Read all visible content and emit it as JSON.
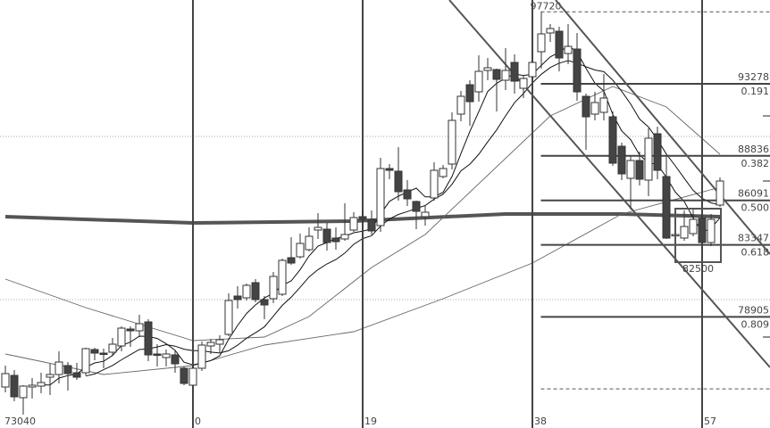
{
  "chart_data": {
    "type": "candlestick",
    "title": "",
    "xlabel": "",
    "ylabel": "",
    "first_bar_index": -21,
    "xlim": [
      -21.6,
      64.6
    ],
    "ylim": [
      72050,
      98450
    ],
    "grid": "dotted horizontal",
    "x_tick_labels": [
      {
        "bar": -21,
        "text": "73040"
      },
      {
        "bar": 0,
        "text": "0"
      },
      {
        "bar": 19,
        "text": "19"
      },
      {
        "bar": 38,
        "text": "38"
      },
      {
        "bar": 57,
        "text": "57"
      }
    ],
    "vertical_lines_at_bars": [
      0,
      19,
      38,
      57
    ],
    "horizontal_gridlines": [
      90035,
      79970
    ],
    "candles_ohlc": [
      [
        74580,
        75900,
        74250,
        75405
      ],
      [
        75295,
        75625,
        73700,
        73975
      ],
      [
        73920,
        74690,
        72875,
        74635
      ],
      [
        74580,
        75130,
        73865,
        74690
      ],
      [
        74635,
        75460,
        74195,
        74855
      ],
      [
        75185,
        76010,
        74085,
        75350
      ],
      [
        75350,
        76780,
        74800,
        76120
      ],
      [
        75900,
        76120,
        74360,
        75405
      ],
      [
        75460,
        76065,
        75020,
        75185
      ],
      [
        75460,
        77000,
        75295,
        76945
      ],
      [
        76890,
        77000,
        76230,
        76670
      ],
      [
        76670,
        76945,
        75735,
        76615
      ],
      [
        76725,
        77605,
        76560,
        77220
      ],
      [
        77110,
        78320,
        76780,
        78210
      ],
      [
        78155,
        78320,
        77055,
        78045
      ],
      [
        78045,
        79035,
        77660,
        78485
      ],
      [
        78595,
        78760,
        76175,
        76560
      ],
      [
        76615,
        77220,
        75845,
        76560
      ],
      [
        76395,
        76890,
        75845,
        76615
      ],
      [
        76560,
        76835,
        75460,
        76010
      ],
      [
        75735,
        75845,
        74690,
        74800
      ],
      [
        74690,
        75900,
        74690,
        75735
      ],
      [
        75735,
        77385,
        75570,
        77165
      ],
      [
        77110,
        77550,
        76615,
        77330
      ],
      [
        77220,
        77770,
        76725,
        77495
      ],
      [
        77825,
        80355,
        77715,
        79915
      ],
      [
        80190,
        80795,
        79420,
        79970
      ],
      [
        80080,
        80960,
        79915,
        80850
      ],
      [
        81015,
        81235,
        79805,
        79970
      ],
      [
        79970,
        80190,
        78760,
        79640
      ],
      [
        80025,
        81675,
        79750,
        81400
      ],
      [
        80300,
        82500,
        80190,
        82390
      ],
      [
        82555,
        83820,
        82115,
        82225
      ],
      [
        82610,
        84040,
        82500,
        83435
      ],
      [
        83050,
        84425,
        82940,
        83875
      ],
      [
        84260,
        85305,
        83710,
        84425
      ],
      [
        84315,
        84700,
        82995,
        83490
      ],
      [
        83765,
        84425,
        83050,
        83545
      ],
      [
        83710,
        85910,
        83600,
        83985
      ],
      [
        84260,
        85360,
        84150,
        85030
      ],
      [
        85085,
        85470,
        84700,
        84920
      ],
      [
        84920,
        85470,
        83985,
        84205
      ],
      [
        84535,
        88715,
        84150,
        88055
      ],
      [
        88055,
        88330,
        87395,
        87945
      ],
      [
        87890,
        89375,
        86075,
        86625
      ],
      [
        86735,
        87340,
        85745,
        86185
      ],
      [
        86020,
        86075,
        84315,
        85415
      ],
      [
        85085,
        85800,
        84535,
        85360
      ],
      [
        86240,
        88440,
        86075,
        87945
      ],
      [
        87560,
        88275,
        87450,
        88055
      ],
      [
        88330,
        91520,
        88000,
        91025
      ],
      [
        91410,
        92840,
        90970,
        92510
      ],
      [
        93225,
        93500,
        90695,
        92180
      ],
      [
        92785,
        95040,
        92180,
        94050
      ],
      [
        94105,
        94875,
        93500,
        94270
      ],
      [
        94160,
        94215,
        91575,
        93555
      ],
      [
        93500,
        95480,
        92895,
        94105
      ],
      [
        94600,
        95095,
        92675,
        93445
      ],
      [
        93005,
        93830,
        92400,
        93610
      ],
      [
        93720,
        94710,
        93610,
        94600
      ],
      [
        95260,
        97720,
        94215,
        96360
      ],
      [
        96415,
        96965,
        95865,
        96690
      ],
      [
        96525,
        96800,
        94050,
        94875
      ],
      [
        95150,
        96965,
        94490,
        95590
      ],
      [
        95425,
        96415,
        92235,
        92785
      ],
      [
        92510,
        92675,
        89210,
        91245
      ],
      [
        91410,
        92785,
        91025,
        92125
      ],
      [
        91520,
        93885,
        91025,
        92400
      ],
      [
        91245,
        91575,
        88220,
        88385
      ],
      [
        89430,
        89650,
        87340,
        87725
      ],
      [
        87450,
        88825,
        85525,
        88550
      ],
      [
        88550,
        89100,
        87010,
        87395
      ],
      [
        87340,
        90530,
        86350,
        89925
      ],
      [
        90200,
        90640,
        87395,
        87945
      ],
      [
        87560,
        88825,
        83710,
        83765
      ],
      [
        83985,
        84040,
        83930,
        83985
      ],
      [
        83765,
        85470,
        83600,
        84480
      ],
      [
        84040,
        85525,
        83875,
        84920
      ],
      [
        84975,
        85250,
        83435,
        83490
      ],
      [
        83490,
        85250,
        83270,
        84920
      ],
      [
        85800,
        87505,
        85690,
        87285
      ]
    ],
    "short_moving_averages": [
      5,
      10
    ],
    "long_moving_averages": [
      {
        "style": "thick",
        "points": [
          [
            -21,
            85085
          ],
          [
            0,
            84700
          ],
          [
            18,
            84810
          ],
          [
            35,
            85250
          ],
          [
            48,
            85250
          ],
          [
            59,
            85085
          ]
        ]
      },
      {
        "style": "thin",
        "points": [
          [
            -21,
            81235
          ],
          [
            -12,
            79475
          ],
          [
            0,
            77440
          ],
          [
            8,
            77660
          ],
          [
            13,
            78925
          ],
          [
            20,
            81950
          ],
          [
            26,
            83985
          ],
          [
            40,
            91300
          ],
          [
            47,
            93115
          ],
          [
            53,
            91850
          ],
          [
            59,
            88935
          ]
        ]
      },
      {
        "style": "thin",
        "points": [
          [
            -21,
            76615
          ],
          [
            -10,
            75350
          ],
          [
            0,
            75900
          ],
          [
            8,
            77165
          ],
          [
            18,
            77990
          ],
          [
            28,
            80025
          ],
          [
            38,
            82225
          ],
          [
            48,
            85250
          ],
          [
            59,
            86900
          ]
        ]
      }
    ],
    "channel_lines": [
      {
        "from": [
          28.7,
          98450
        ],
        "to": [
          64.6,
          75790
        ]
      },
      {
        "from": [
          40.6,
          98450
        ],
        "to": [
          64.6,
          82775
        ]
      }
    ],
    "fibonacci": {
      "start_bar": 39,
      "high": {
        "price": 97720,
        "label": "97720"
      },
      "low_line": 74463,
      "levels": [
        {
          "price": 93278,
          "price_label": "93278",
          "ratio": "0.191"
        },
        {
          "price": 88836,
          "price_label": "88836",
          "ratio": "0.382"
        },
        {
          "price": 86091,
          "price_label": "86091",
          "ratio": "0.500"
        },
        {
          "price": 83347,
          "price_label": "83347",
          "ratio": "0.618"
        },
        {
          "price": 78905,
          "price_label": "78905",
          "ratio": "0.809"
        }
      ]
    },
    "box": {
      "bars": [
        54,
        59.1
      ],
      "prices": [
        85580,
        82280
      ],
      "label": "82500"
    },
    "right_axis_ticks": [
      91300,
      87285,
      77660
    ],
    "colors": {
      "bull_fill": "#ffffff",
      "bear_fill": "#444444",
      "outline": "#333333",
      "lines": "#555555"
    }
  }
}
